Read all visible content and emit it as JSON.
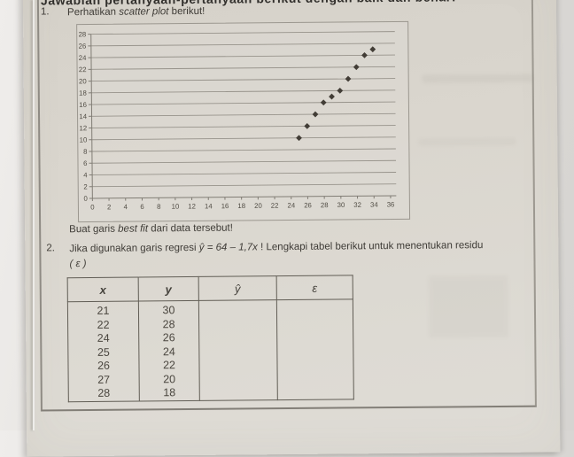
{
  "document": {
    "header_title": "Jawablah pertanyaan-pertanyaan berikut dengan baik dan benar!",
    "q1": {
      "number": "1.",
      "prefix": "Perhatikan ",
      "italic": "scatter plot",
      "suffix": " berikut!",
      "caption_prefix": "Buat garis ",
      "caption_italic": "best fit",
      "caption_suffix": " dari data tersebut!"
    },
    "q2": {
      "number": "2.",
      "prefix": "Jika digunakan garis regresi ",
      "equation": "ŷ = 64 – 1,7x",
      "suffix": " ! Lengkapi tabel berikut untuk menentukan residu",
      "epsilon_note": "( ε )"
    }
  },
  "chart_data": {
    "type": "scatter",
    "title": "",
    "xlabel": "",
    "ylabel": "",
    "x": [
      25,
      26,
      27,
      28,
      29,
      30,
      31,
      32,
      33,
      34
    ],
    "y": [
      10,
      12,
      14,
      16,
      17,
      18,
      20,
      22,
      24,
      25
    ],
    "xlim": [
      0,
      36
    ],
    "ylim": [
      0,
      28
    ],
    "x_tick_step": 2,
    "y_tick_step": 2,
    "grid": "horizontal-major",
    "legend": "none",
    "marker": "diamond",
    "marker_color": "#423d36",
    "gridline_color": "#97938b",
    "axis_color": "#817d75",
    "tick_label_color": "#514d45"
  },
  "table": {
    "headers": [
      "x",
      "y",
      "ŷ",
      "ε"
    ],
    "x_values": [
      21,
      22,
      24,
      25,
      26,
      27,
      28
    ],
    "y_values": [
      30,
      28,
      26,
      24,
      22,
      20,
      18
    ],
    "y_hat_values": [],
    "epsilon_values": []
  }
}
